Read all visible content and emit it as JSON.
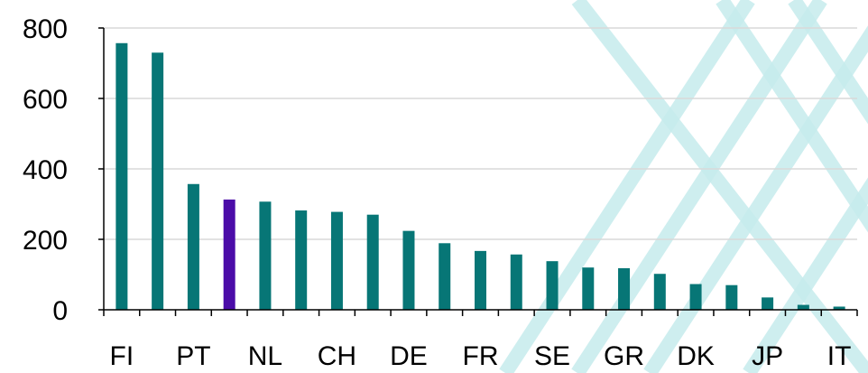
{
  "chart_data": {
    "type": "bar",
    "title": "",
    "xlabel": "",
    "ylabel": "",
    "ylim": [
      0,
      800
    ],
    "yticks": [
      0,
      200,
      400,
      600,
      800
    ],
    "grid": true,
    "legend": "none",
    "categories": [
      "FI",
      "",
      "PT",
      "",
      "NL",
      "",
      "CH",
      "",
      "DE",
      "",
      "FR",
      "",
      "SE",
      "",
      "GR",
      "",
      "DK",
      "",
      "JP",
      "",
      "IT"
    ],
    "values": [
      757,
      730,
      357,
      313,
      307,
      282,
      278,
      270,
      224,
      189,
      167,
      157,
      138,
      120,
      118,
      102,
      73,
      70,
      35,
      14,
      9
    ],
    "highlight_index": 3,
    "colors": {
      "bar": "#077676",
      "highlight": "#4b0ca8",
      "grid": "#d9d9d9",
      "axis": "#000000",
      "background_lines": "#c6ebec"
    }
  }
}
